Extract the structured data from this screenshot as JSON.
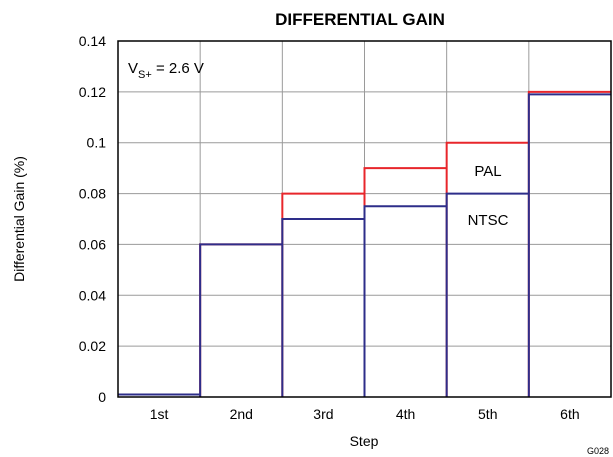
{
  "chart_data": {
    "type": "line",
    "title": "DIFFERENTIAL GAIN",
    "xlabel": "Step",
    "ylabel": "Differential Gain (%)",
    "categories": [
      "1st",
      "2nd",
      "3rd",
      "4th",
      "5th",
      "6th"
    ],
    "ylim": [
      0,
      0.14
    ],
    "yticks": [
      "0",
      "0.02",
      "0.04",
      "0.06",
      "0.08",
      "0.1",
      "0.12",
      "0.14"
    ],
    "grid": true,
    "step": true,
    "series": [
      {
        "name": "PAL",
        "color": "#e8262b",
        "values": [
          0.001,
          0.06,
          0.08,
          0.09,
          0.1,
          0.12
        ]
      },
      {
        "name": "NTSC",
        "color": "#2e2e8a",
        "values": [
          0.001,
          0.06,
          0.07,
          0.075,
          0.08,
          0.119
        ]
      }
    ],
    "annotation": {
      "main": "V",
      "sub": "S+",
      "rest": " = 2.6 V"
    },
    "figure_id": "G028"
  }
}
